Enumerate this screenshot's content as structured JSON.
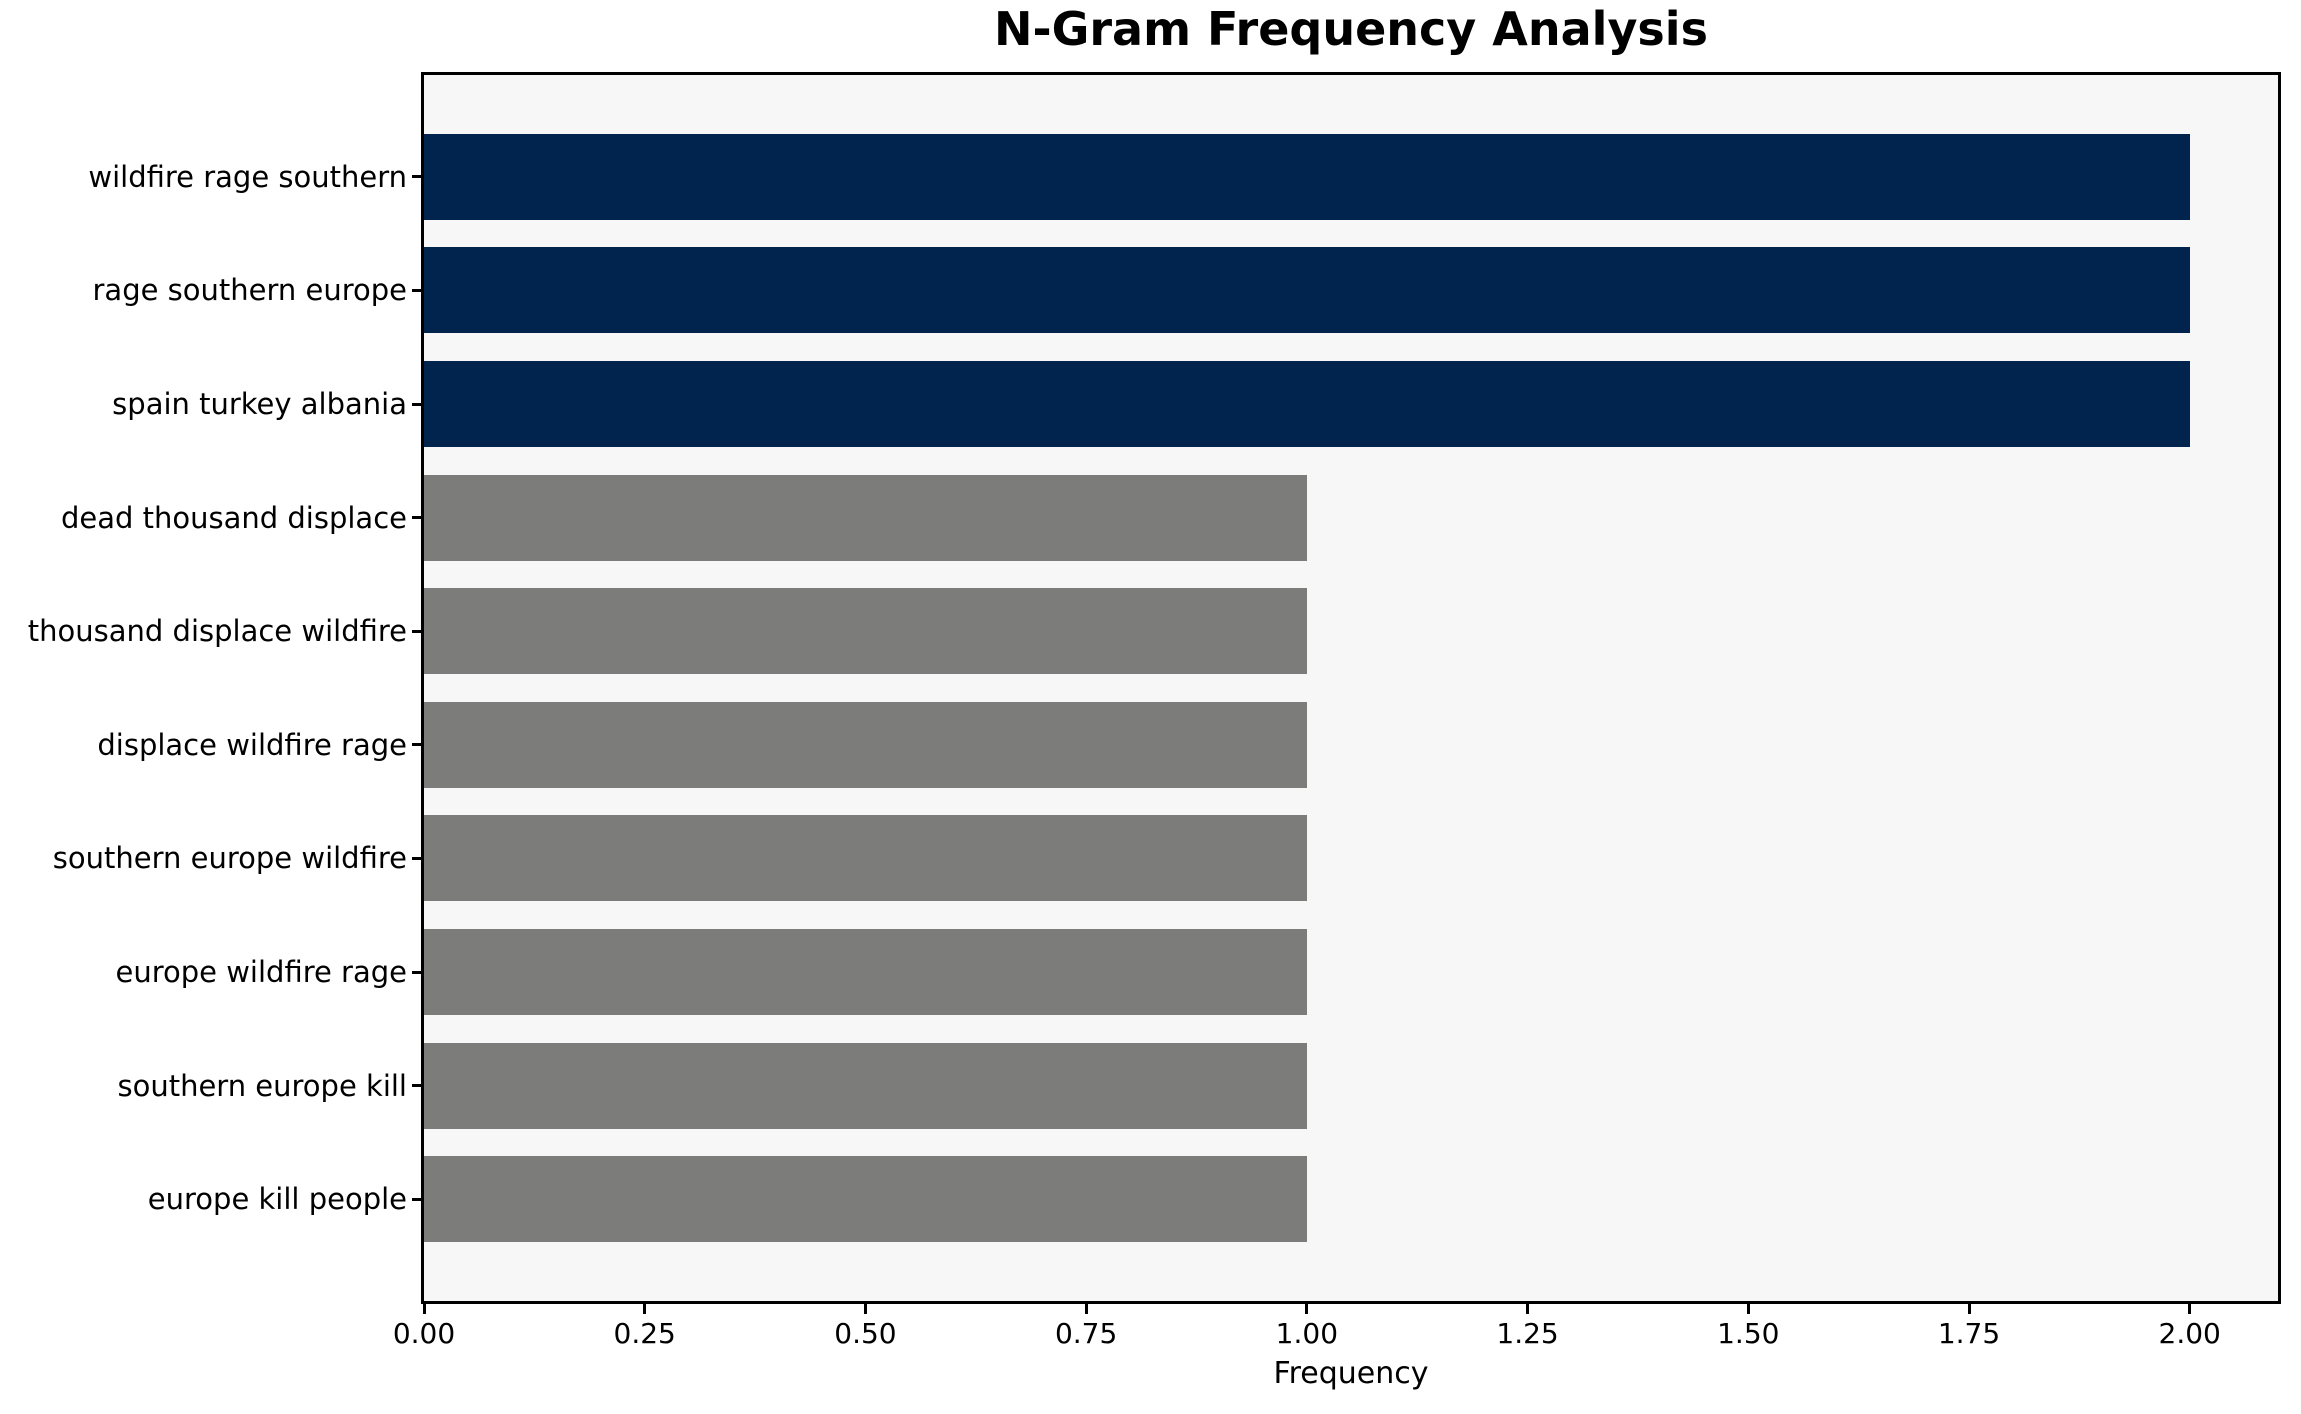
{
  "chart_data": {
    "type": "bar",
    "orientation": "horizontal",
    "title": "N-Gram Frequency Analysis",
    "xlabel": "Frequency",
    "ylabel": "",
    "categories": [
      "wildfire rage southern",
      "rage southern europe",
      "spain turkey albania",
      "dead thousand displace",
      "thousand displace wildfire",
      "displace wildfire rage",
      "southern europe wildfire",
      "europe wildfire rage",
      "southern europe kill",
      "europe kill people"
    ],
    "values": [
      2,
      2,
      2,
      1,
      1,
      1,
      1,
      1,
      1,
      1
    ],
    "bar_colors": [
      "#01244e",
      "#01244e",
      "#01244e",
      "#7c7c7a",
      "#7c7c7a",
      "#7c7c7a",
      "#7c7c7a",
      "#7c7c7a",
      "#7c7c7a",
      "#7c7c7a"
    ],
    "xlim": [
      0,
      2.1
    ],
    "xtick_values": [
      0,
      0.25,
      0.5,
      0.75,
      1.0,
      1.25,
      1.5,
      1.75,
      2.0
    ],
    "xtick_labels": [
      "0.00",
      "0.25",
      "0.50",
      "0.75",
      "1.00",
      "1.25",
      "1.50",
      "1.75",
      "2.00"
    ],
    "grid": false,
    "legend": "none",
    "colors": {
      "highlight_bar": "#01244e",
      "default_bar": "#7c7c7a",
      "plot_background": "#f7f7f7",
      "figure_background": "#ffffff",
      "axis": "#000000",
      "text": "#000000"
    }
  }
}
